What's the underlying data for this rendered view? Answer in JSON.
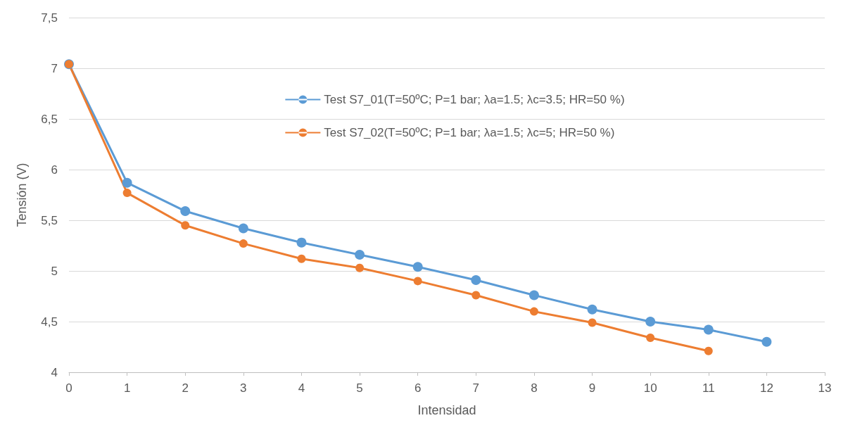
{
  "chart_data": {
    "type": "line",
    "xlabel": "Intensidad",
    "ylabel": "Tensión (V)",
    "series": [
      {
        "name": "Test S7_01(T=50ºC; P=1 bar; λa=1.5; λc=3.5; HR=50 %)",
        "color": "#5b9bd5",
        "x": [
          0,
          1,
          2,
          3,
          4,
          5,
          6,
          7,
          8,
          9,
          10,
          11,
          12
        ],
        "values": [
          7.04,
          5.87,
          5.59,
          5.42,
          5.28,
          5.16,
          5.04,
          4.91,
          4.76,
          4.62,
          4.5,
          4.42,
          4.3
        ]
      },
      {
        "name": "Test S7_02(T=50ºC; P=1 bar; λa=1.5; λc=5; HR=50 %)",
        "color": "#ed7d31",
        "x": [
          0,
          1,
          2,
          3,
          4,
          5,
          6,
          7,
          8,
          9,
          10,
          11
        ],
        "values": [
          7.04,
          5.77,
          5.45,
          5.27,
          5.12,
          5.03,
          4.9,
          4.76,
          4.6,
          4.49,
          4.34,
          4.21
        ]
      }
    ],
    "xlim": [
      0,
      13
    ],
    "xticks": [
      0,
      1,
      2,
      3,
      4,
      5,
      6,
      7,
      8,
      9,
      10,
      11,
      12,
      13
    ],
    "ylim": [
      4,
      7.5
    ],
    "yticks": [
      4,
      {
        "value": 4.5,
        "label": "4,5"
      },
      5,
      {
        "value": 5.5,
        "label": "5,5"
      },
      6,
      {
        "value": 6.5,
        "label": "6,5"
      },
      7,
      {
        "value": 7.5,
        "label": "7,5"
      }
    ],
    "grid": "y",
    "legend": "top",
    "marker": "circle",
    "line_style": "solid"
  }
}
